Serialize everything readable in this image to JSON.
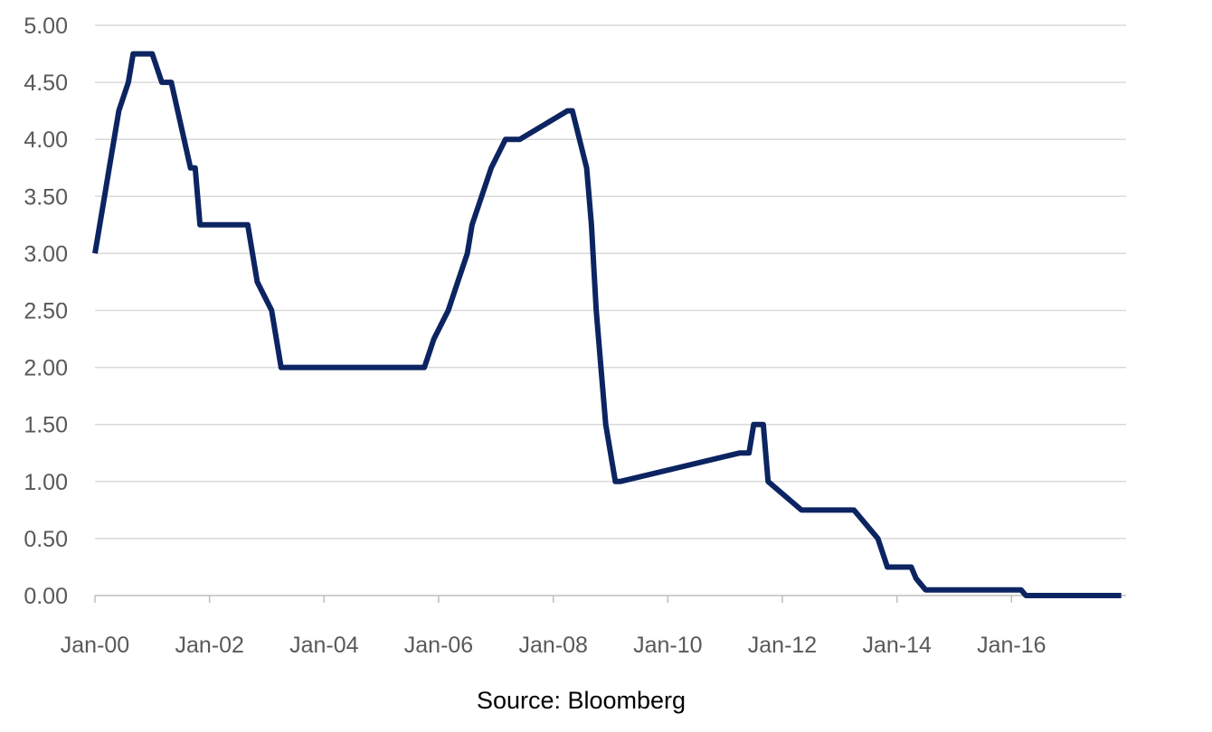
{
  "chart_data": {
    "type": "line",
    "title": "",
    "xlabel": "",
    "ylabel": "",
    "ylim": [
      0,
      5
    ],
    "y_ticks": [
      "0.00",
      "0.50",
      "1.00",
      "1.50",
      "2.00",
      "2.50",
      "3.00",
      "3.50",
      "4.00",
      "4.50",
      "5.00"
    ],
    "x_ticks": [
      "Jan-00",
      "Jan-02",
      "Jan-04",
      "Jan-06",
      "Jan-08",
      "Jan-10",
      "Jan-12",
      "Jan-14",
      "Jan-16"
    ],
    "xlim": [
      "2000-01",
      "2017-12"
    ],
    "grid": true,
    "legend": "none",
    "line_color": "#0c2461",
    "series": [
      {
        "x": [
          "2000-01",
          "2000-02",
          "2000-03",
          "2000-04",
          "2000-06",
          "2000-08",
          "2000-09",
          "2000-11",
          "2001-01",
          "2001-03",
          "2001-05",
          "2001-09",
          "2001-10",
          "2001-11",
          "2002-09",
          "2002-11",
          "2003-02",
          "2003-04",
          "2005-10",
          "2005-12",
          "2006-03",
          "2006-05",
          "2006-07",
          "2006-08",
          "2006-10",
          "2006-12",
          "2007-03",
          "2007-06",
          "2008-04",
          "2008-05",
          "2008-08",
          "2008-09",
          "2008-10",
          "2008-11",
          "2008-12",
          "2009-01",
          "2009-02",
          "2009-03",
          "2011-04",
          "2011-06",
          "2011-07",
          "2011-09",
          "2011-10",
          "2012-05",
          "2013-04",
          "2013-09",
          "2013-11",
          "2014-04",
          "2014-05",
          "2014-07",
          "2014-08",
          "2016-03",
          "2016-04",
          "2017-12"
        ],
        "values": [
          3.0,
          3.25,
          3.5,
          3.75,
          4.25,
          4.5,
          4.75,
          4.75,
          4.75,
          4.5,
          4.5,
          3.75,
          3.75,
          3.25,
          3.25,
          2.75,
          2.5,
          2.0,
          2.0,
          2.25,
          2.5,
          2.75,
          3.0,
          3.25,
          3.5,
          3.75,
          4.0,
          4.0,
          4.25,
          4.25,
          3.75,
          3.25,
          2.5,
          2.0,
          1.5,
          1.25,
          1.0,
          1.0,
          1.25,
          1.25,
          1.5,
          1.5,
          1.0,
          0.75,
          0.75,
          0.5,
          0.25,
          0.25,
          0.15,
          0.05,
          0.05,
          0.05,
          0.0,
          0.0
        ]
      }
    ]
  },
  "source": "Source: Bloomberg"
}
